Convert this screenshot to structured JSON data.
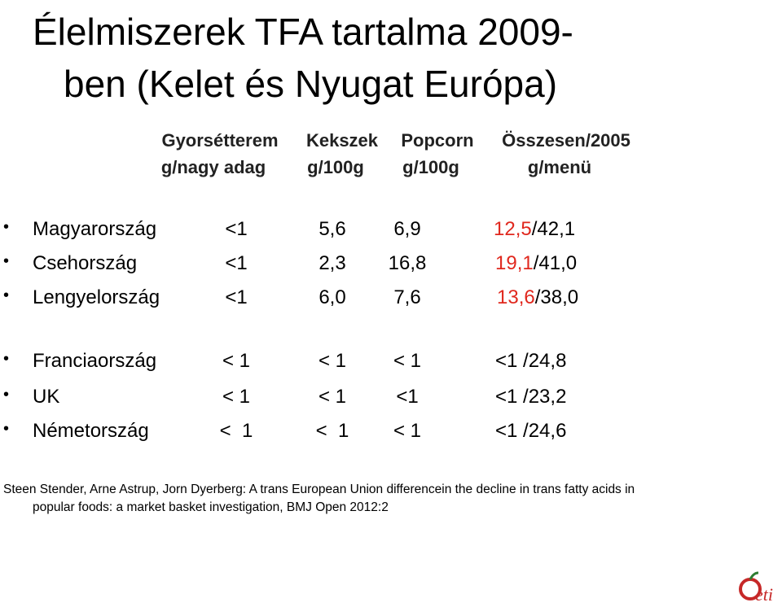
{
  "title": {
    "lines": [
      "Élelmiszerek TFA tartalma 2009-",
      "ben (Kelet és Nyugat Európa)"
    ]
  },
  "table": {
    "header": [
      "Gyorsétterem",
      "Kekszek",
      "Popcorn",
      "Összesen/2005"
    ],
    "units": [
      "g/nagy adag",
      "g/100g",
      "g/100g",
      "g/menü"
    ],
    "groups": [
      {
        "rows": [
          {
            "country": "Magyarország",
            "cells": [
              "<1",
              "5,6",
              "6,9"
            ],
            "total_highlight": "12,5",
            "total_rest": "/42,1"
          },
          {
            "country": "Csehország",
            "cells": [
              "<1",
              "2,3",
              "16,8"
            ],
            "total_highlight": "19,1",
            "total_rest": "/41,0"
          },
          {
            "country": "Lengyelország",
            "cells": [
              "<1",
              "6,0",
              "7,6"
            ],
            "total_highlight": "13,6",
            "total_rest": "/38,0"
          }
        ]
      },
      {
        "rows": [
          {
            "country": "Franciaország",
            "cells": [
              "< 1",
              "< 1",
              "< 1"
            ],
            "total_rest": "<1 /24,8"
          },
          {
            "country": "UK",
            "cells": [
              "< 1",
              "< 1",
              "<1"
            ],
            "total_rest": "<1 /23,2"
          },
          {
            "country": "Németország",
            "cells": [
              "<  1",
              "<  1",
              "< 1"
            ],
            "total_rest": "<1 /24,6"
          }
        ]
      }
    ]
  },
  "citation": [
    "Steen Stender, Arne Astrup, Jorn Dyerberg: A trans European Union differencein the decline in trans fatty acids in",
    "popular foods: a market basket investigation, BMJ Open 2012:2"
  ],
  "logo": {
    "text": "eti"
  }
}
